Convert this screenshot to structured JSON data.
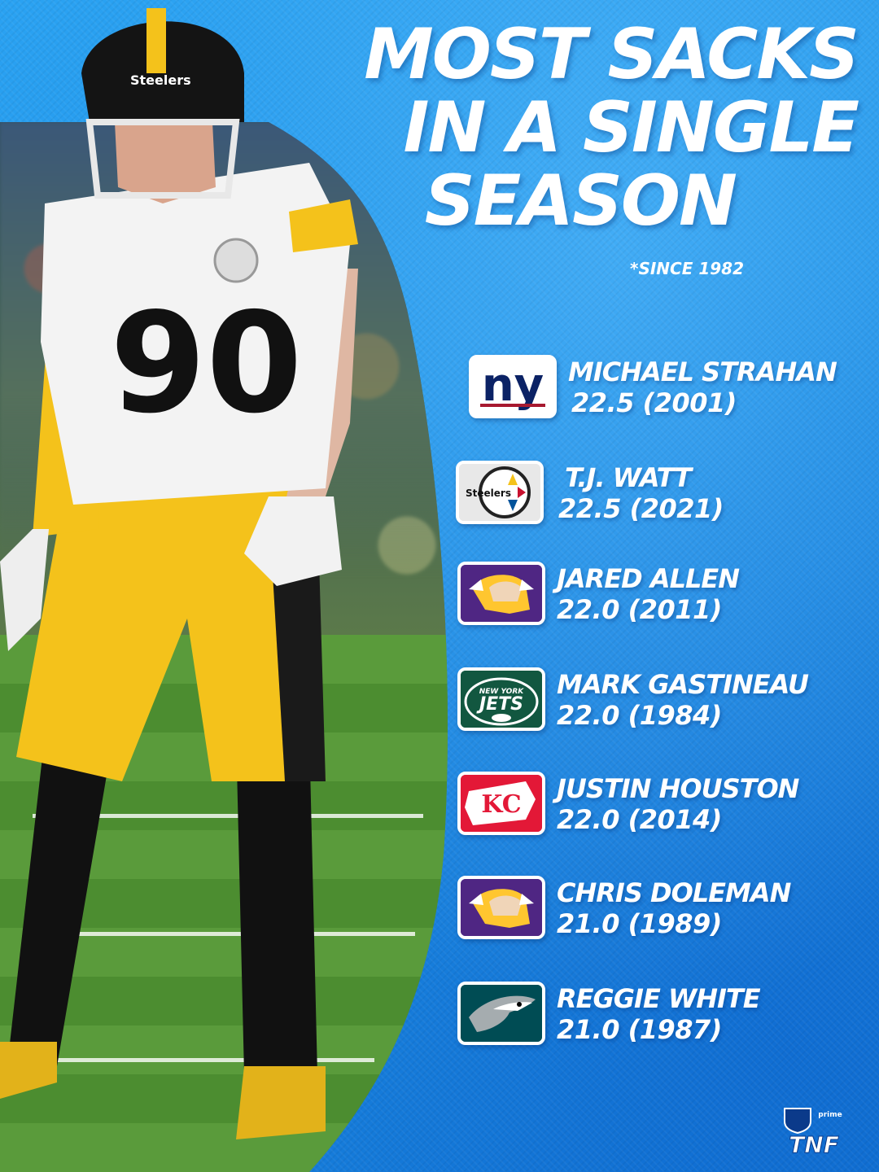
{
  "title_lines": [
    "MOST SACKS",
    "IN A SINGLE",
    "SEASON"
  ],
  "subtitle": "*SINCE 1982",
  "players": [
    {
      "name": "MICHAEL STRAHAN",
      "stat": "22.5 (2001)",
      "team_logo": "giants-logo",
      "logo_text": "ny"
    },
    {
      "name": "T.J. WATT",
      "stat": "22.5 (2021)",
      "team_logo": "steelers-logo",
      "logo_text": "Steelers"
    },
    {
      "name": "JARED ALLEN",
      "stat": "22.0 (2011)",
      "team_logo": "vikings-logo"
    },
    {
      "name": "MARK GASTINEAU",
      "stat": "22.0 (1984)",
      "team_logo": "jets-logo",
      "logo_text": "NEW YORK JETS"
    },
    {
      "name": "JUSTIN HOUSTON",
      "stat": "22.0 (2014)",
      "team_logo": "chiefs-logo",
      "logo_text": "KC"
    },
    {
      "name": "CHRIS DOLEMAN",
      "stat": "21.0 (1989)",
      "team_logo": "vikings-logo"
    },
    {
      "name": "REGGIE WHITE",
      "stat": "21.0 (1987)",
      "team_logo": "eagles-logo"
    }
  ],
  "photo": {
    "jersey_number": "90",
    "helmet_text": "Steelers"
  },
  "brand": {
    "logo": "tnf-logo",
    "text": "TNF",
    "prime_text": "prime"
  },
  "colors": {
    "background": "#1f8fe6",
    "text": "#ffffff",
    "steelers_gold": "#f4c21b"
  }
}
